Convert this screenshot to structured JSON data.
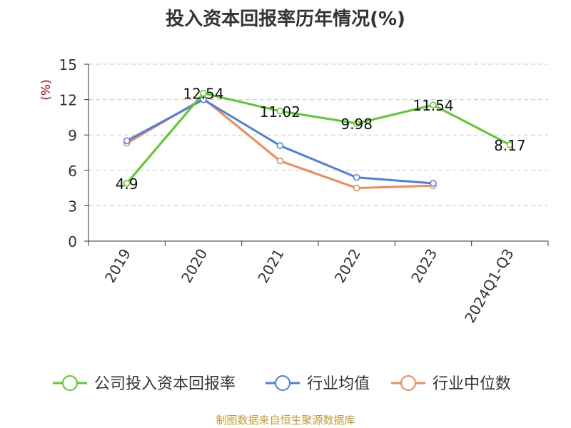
{
  "title": "投入资本回报率历年情况(%)",
  "footer": "制图数据来自恒生聚源数据库",
  "chart_data": {
    "type": "line",
    "title": "投入资本回报率历年情况(%)",
    "ylabel": "(%)",
    "ylim": [
      0,
      15
    ],
    "yticks": [
      0,
      3,
      6,
      9,
      12,
      15
    ],
    "categories": [
      "2019",
      "2020",
      "2021",
      "2022",
      "2023",
      "2024Q1-Q3"
    ],
    "grid": true,
    "legend_position": "bottom",
    "series": [
      {
        "name": "公司投入资本回报率",
        "color": "#5cc92a",
        "values": [
          4.9,
          12.54,
          11.02,
          9.98,
          11.54,
          8.17
        ],
        "labels": true
      },
      {
        "name": "行业均值",
        "color": "#4f7fdc",
        "values": [
          8.5,
          12.0,
          8.1,
          5.4,
          4.9,
          null
        ],
        "labels": false
      },
      {
        "name": "行业中位数",
        "color": "#f08a5a",
        "values": [
          8.3,
          12.1,
          6.8,
          4.5,
          4.7,
          null
        ],
        "labels": false
      }
    ]
  }
}
